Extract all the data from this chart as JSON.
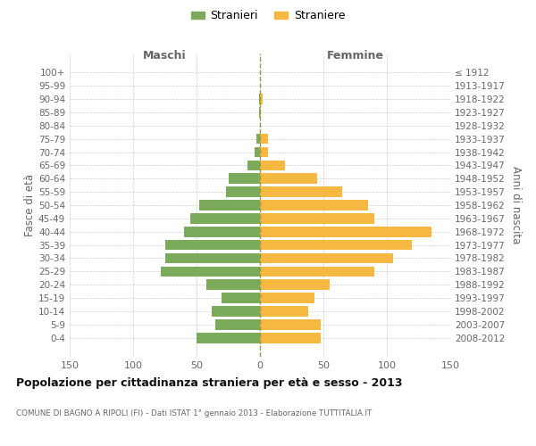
{
  "age_groups": [
    "100+",
    "95-99",
    "90-94",
    "85-89",
    "80-84",
    "75-79",
    "70-74",
    "65-69",
    "60-64",
    "55-59",
    "50-54",
    "45-49",
    "40-44",
    "35-39",
    "30-34",
    "25-29",
    "20-24",
    "15-19",
    "10-14",
    "5-9",
    "0-4"
  ],
  "birth_years": [
    "≤ 1912",
    "1913-1917",
    "1918-1922",
    "1923-1927",
    "1928-1932",
    "1933-1937",
    "1938-1942",
    "1943-1947",
    "1948-1952",
    "1953-1957",
    "1958-1962",
    "1963-1967",
    "1968-1972",
    "1973-1977",
    "1978-1982",
    "1983-1987",
    "1988-1992",
    "1993-1997",
    "1998-2002",
    "2003-2007",
    "2008-2012"
  ],
  "maschi": [
    0,
    0,
    1,
    1,
    0,
    3,
    4,
    10,
    25,
    27,
    48,
    55,
    60,
    75,
    75,
    78,
    42,
    30,
    38,
    35,
    50
  ],
  "femmine": [
    0,
    0,
    2,
    1,
    0,
    6,
    6,
    20,
    45,
    65,
    85,
    90,
    135,
    120,
    105,
    90,
    55,
    43,
    38,
    48,
    48
  ],
  "color_maschi": "#7aaa5a",
  "color_femmine": "#f5b942",
  "color_grid": "#cccccc",
  "color_dashed": "#999944",
  "title": "Popolazione per cittadinanza straniera per età e sesso - 2013",
  "subtitle": "COMUNE DI BAGNO A RIPOLI (FI) - Dati ISTAT 1° gennaio 2013 - Elaborazione TUTTITALIA.IT",
  "label_maschi": "Maschi",
  "label_femmine": "Femmine",
  "ylabel_left": "Fasce di età",
  "ylabel_right": "Anni di nascita",
  "legend_maschi": "Stranieri",
  "legend_femmine": "Straniere",
  "xlim": 150,
  "background_color": "#ffffff",
  "text_color": "#666666",
  "title_color": "#111111"
}
